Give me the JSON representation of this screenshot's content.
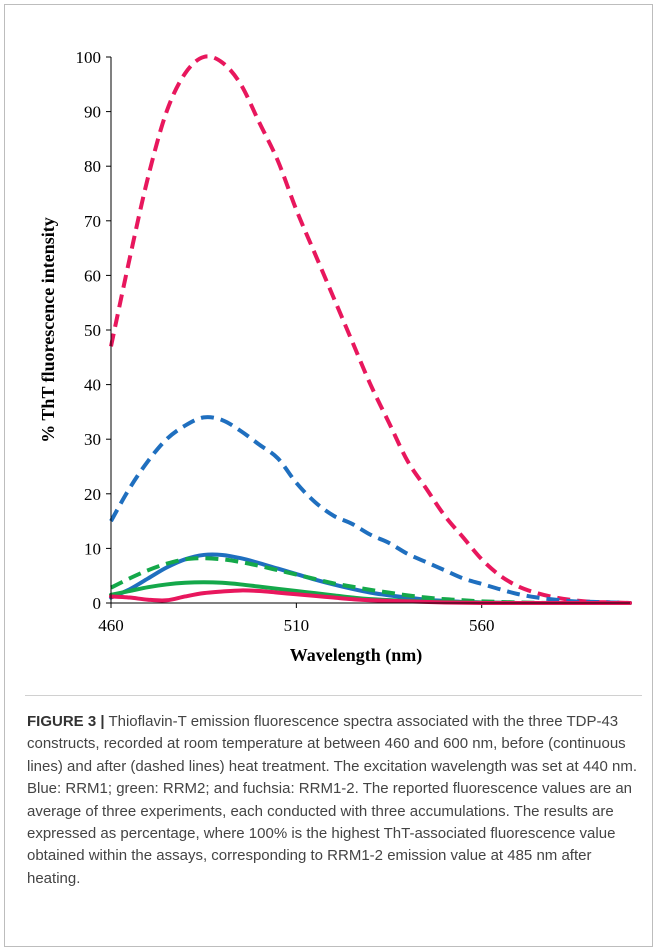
{
  "caption": {
    "label": "FIGURE 3 |",
    "text": " Thioflavin-T emission fluorescence spectra associated with the three TDP-43 constructs, recorded at room temperature at between 460 and 600 nm, before (continuous lines) and after (dashed lines) heat treatment. The excitation wavelength was set at 440 nm. Blue: RRM1; green: RRM2; and fuchsia: RRM1-2. The reported fluorescence values are an average of three experiments, each conducted with three accumulations. The results are expressed as percentage, where 100% is the highest ThT-associated fluorescence value obtained within the assays, corresponding to RRM1-2 emission value at 485 nm after heating."
  },
  "colors": {
    "blue": "#1f6fbf",
    "green": "#14a84a",
    "fuchsia": "#e8175d"
  },
  "chart_data": {
    "type": "line",
    "title": "",
    "xlabel": "Wavelength (nm)",
    "ylabel": "% ThT fluorescence intensity",
    "xlim": [
      460,
      600
    ],
    "ylim": [
      0,
      100
    ],
    "xticks": [
      460,
      510,
      560
    ],
    "yticks": [
      0,
      10,
      20,
      30,
      40,
      50,
      60,
      70,
      80,
      90,
      100
    ],
    "grid": false,
    "legend": "none",
    "series": [
      {
        "color": "#e8175d",
        "style": "dashed",
        "x": [
          460,
          465,
          470,
          475,
          480,
          485,
          490,
          495,
          500,
          505,
          510,
          515,
          520,
          525,
          530,
          535,
          540,
          545,
          550,
          555,
          560,
          565,
          570,
          575,
          580,
          585,
          590,
          595,
          600
        ],
        "y": [
          47,
          63,
          78,
          90,
          97,
          100,
          99,
          95,
          88,
          81,
          72,
          64,
          56,
          48,
          40,
          33,
          26,
          21,
          16,
          12,
          8,
          5,
          3,
          1.8,
          1,
          0.5,
          0.2,
          0.1,
          0
        ]
      },
      {
        "color": "#1f6fbf",
        "style": "dashed",
        "x": [
          460,
          465,
          470,
          475,
          480,
          485,
          490,
          495,
          500,
          505,
          510,
          515,
          520,
          525,
          530,
          535,
          540,
          545,
          550,
          555,
          560,
          565,
          570,
          575,
          580,
          585,
          590,
          595,
          600
        ],
        "y": [
          15,
          21,
          26,
          30,
          32.5,
          34,
          33.5,
          31.5,
          29,
          26.5,
          22,
          18.5,
          16,
          14.5,
          12.5,
          11,
          9,
          7.5,
          6,
          4.5,
          3.5,
          2.5,
          1.6,
          1,
          0.6,
          0.3,
          0.2,
          0.1,
          0
        ]
      },
      {
        "color": "#1f6fbf",
        "style": "solid",
        "x": [
          460,
          465,
          470,
          475,
          480,
          485,
          490,
          495,
          500,
          505,
          510,
          515,
          520,
          525,
          530,
          535,
          540,
          545,
          550,
          555,
          560,
          570,
          580,
          590,
          600
        ],
        "y": [
          1,
          2.5,
          4.5,
          6.5,
          8,
          8.8,
          8.8,
          8.2,
          7.3,
          6.3,
          5.3,
          4.3,
          3.4,
          2.6,
          1.9,
          1.4,
          1,
          0.6,
          0.4,
          0.2,
          0.1,
          0,
          0,
          0,
          0
        ]
      },
      {
        "color": "#14a84a",
        "style": "dashed",
        "x": [
          460,
          465,
          470,
          475,
          480,
          485,
          490,
          495,
          500,
          505,
          510,
          515,
          520,
          525,
          530,
          535,
          540,
          545,
          550,
          555,
          560,
          570,
          580,
          590,
          600
        ],
        "y": [
          2.8,
          4.5,
          6,
          7.2,
          8,
          8.2,
          8,
          7.5,
          6.8,
          6,
          5.2,
          4.4,
          3.6,
          3,
          2.4,
          1.9,
          1.4,
          1,
          0.7,
          0.5,
          0.3,
          0.1,
          0,
          0,
          0
        ]
      },
      {
        "color": "#14a84a",
        "style": "solid",
        "x": [
          460,
          465,
          470,
          475,
          480,
          485,
          490,
          495,
          500,
          505,
          510,
          515,
          520,
          525,
          530,
          540,
          550,
          560,
          570,
          580,
          590,
          600
        ],
        "y": [
          1.5,
          2.2,
          2.9,
          3.4,
          3.7,
          3.8,
          3.7,
          3.4,
          3,
          2.6,
          2.2,
          1.8,
          1.4,
          1,
          0.7,
          0.4,
          0.2,
          0.1,
          0,
          0,
          0,
          0
        ]
      },
      {
        "color": "#e8175d",
        "style": "solid",
        "x": [
          460,
          465,
          470,
          475,
          480,
          485,
          490,
          495,
          500,
          505,
          510,
          515,
          520,
          525,
          530,
          540,
          550,
          560,
          570,
          580,
          590,
          600
        ],
        "y": [
          1.2,
          1,
          0.6,
          0.5,
          1.2,
          1.8,
          2.1,
          2.3,
          2.2,
          1.9,
          1.6,
          1.3,
          1,
          0.7,
          0.5,
          0.3,
          0.1,
          0,
          0,
          0,
          0,
          0
        ]
      }
    ]
  }
}
